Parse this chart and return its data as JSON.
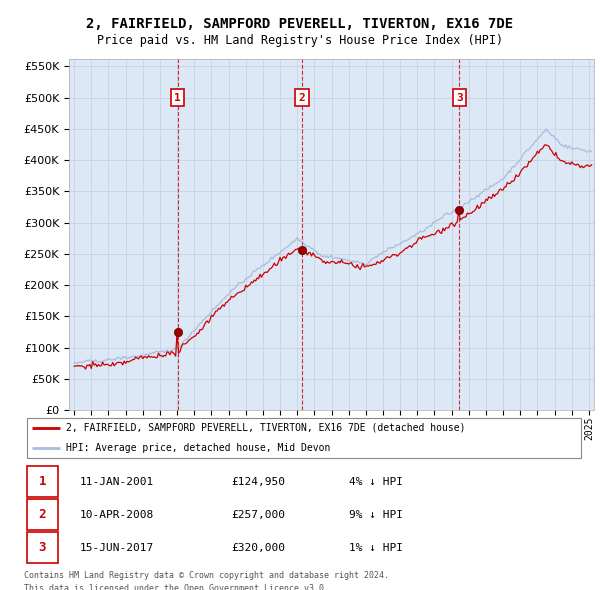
{
  "title": "2, FAIRFIELD, SAMPFORD PEVERELL, TIVERTON, EX16 7DE",
  "subtitle": "Price paid vs. HM Land Registry's House Price Index (HPI)",
  "legend_line1": "2, FAIRFIELD, SAMPFORD PEVERELL, TIVERTON, EX16 7DE (detached house)",
  "legend_line2": "HPI: Average price, detached house, Mid Devon",
  "sale_color": "#cc0000",
  "hpi_color": "#aabbdd",
  "table_data": [
    {
      "num": "1",
      "date": "11-JAN-2001",
      "price": "£124,950",
      "hpi": "4% ↓ HPI"
    },
    {
      "num": "2",
      "date": "10-APR-2008",
      "price": "£257,000",
      "hpi": "9% ↓ HPI"
    },
    {
      "num": "3",
      "date": "15-JUN-2017",
      "price": "£320,000",
      "hpi": "1% ↓ HPI"
    }
  ],
  "footer1": "Contains HM Land Registry data © Crown copyright and database right 2024.",
  "footer2": "This data is licensed under the Open Government Licence v3.0.",
  "ylim_max": 550000,
  "ylim_min": 0,
  "xlim_start": 1994.7,
  "xlim_end": 2025.3,
  "chart_bg": "#dce8f5",
  "grid_color": "#c0cfe0"
}
